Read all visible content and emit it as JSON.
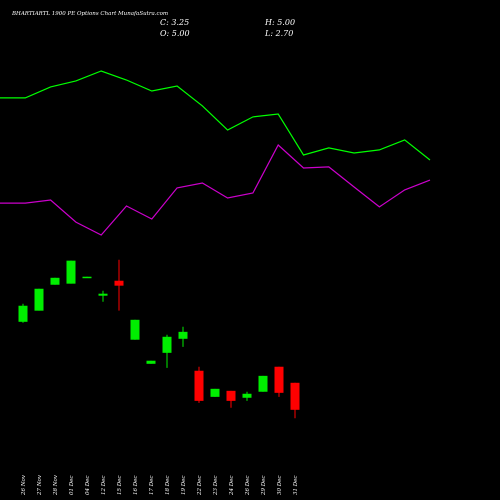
{
  "chart_data": {
    "type": "candlestick",
    "title": "BHARTIARTL 1900 PE Options Chart MunafaSutra.com",
    "summary": {
      "close": "C: 3.25",
      "high": "H: 5.00",
      "open": "O: 5.00",
      "low": "L: 2.70"
    },
    "categories": [
      "26 Nov",
      "27 Nov",
      "28 Nov",
      "01 Dec",
      "04 Dec",
      "12 Dec",
      "15 Dec",
      "16 Dec",
      "17 Dec",
      "18 Dec",
      "19 Dec",
      "22 Dec",
      "23 Dec",
      "24 Dec",
      "26 Dec",
      "29 Dec",
      "30 Dec",
      "31 Dec"
    ],
    "open": [
      8.95,
      9.67,
      11.35,
      11.42,
      11.8,
      10.64,
      11.61,
      7.79,
      6.23,
      6.94,
      7.85,
      5.78,
      4.09,
      4.48,
      4.03,
      4.42,
      6.04,
      5.0
    ],
    "high": [
      10.12,
      11.09,
      11.8,
      12.91,
      11.87,
      10.96,
      12.97,
      9.08,
      6.43,
      8.11,
      8.63,
      6.04,
      4.61,
      4.48,
      4.42,
      5.45,
      6.04,
      5.0
    ],
    "low": [
      8.89,
      9.67,
      11.35,
      11.42,
      11.8,
      10.25,
      9.67,
      7.79,
      6.23,
      5.97,
      7.33,
      3.7,
      4.09,
      3.38,
      3.83,
      4.42,
      4.09,
      2.7
    ],
    "close": [
      9.99,
      11.09,
      11.8,
      12.91,
      11.87,
      10.77,
      11.29,
      9.08,
      6.43,
      7.98,
      8.3,
      3.83,
      4.61,
      3.83,
      4.29,
      5.45,
      4.35,
      3.25
    ],
    "up_color": "#00ee00",
    "down_color": "#ff0000",
    "lines": [
      {
        "color": "#00ff00",
        "values": [
          23.45,
          23.45,
          24.16,
          24.55,
          25.19,
          24.61,
          23.9,
          24.22,
          22.93,
          21.37,
          22.22,
          22.41,
          19.75,
          20.21,
          19.88,
          20.08,
          20.73,
          19.43
        ]
      },
      {
        "color": "#cc00cc",
        "values": [
          16.64,
          16.64,
          16.84,
          15.41,
          14.57,
          16.45,
          15.61,
          17.62,
          17.94,
          16.97,
          17.29,
          20.4,
          18.91,
          18.98,
          17.68,
          16.39,
          17.49,
          18.13
        ]
      }
    ],
    "ylim": [
      0,
      27.2
    ]
  }
}
